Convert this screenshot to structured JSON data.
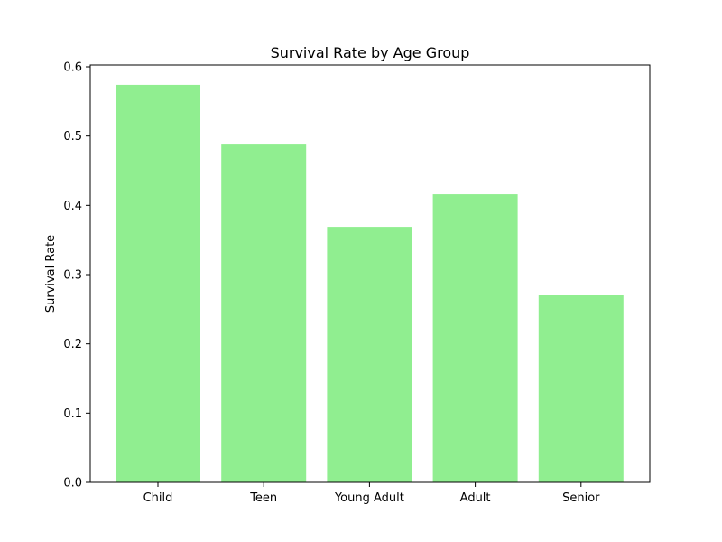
{
  "chart_data": {
    "type": "bar",
    "title": "Survival Rate by Age Group",
    "xlabel": "",
    "ylabel": "Survival Rate",
    "categories": [
      "Child",
      "Teen",
      "Young Adult",
      "Adult",
      "Senior"
    ],
    "values": [
      0.574,
      0.489,
      0.369,
      0.416,
      0.27
    ],
    "yticks": [
      "0.0",
      "0.1",
      "0.2",
      "0.3",
      "0.4",
      "0.5",
      "0.6"
    ],
    "ylim": [
      0,
      0.6
    ],
    "grid": false,
    "legend": "none",
    "colors": {
      "bar": "#90ee90",
      "axis": "#000000",
      "background": "#ffffff"
    }
  }
}
